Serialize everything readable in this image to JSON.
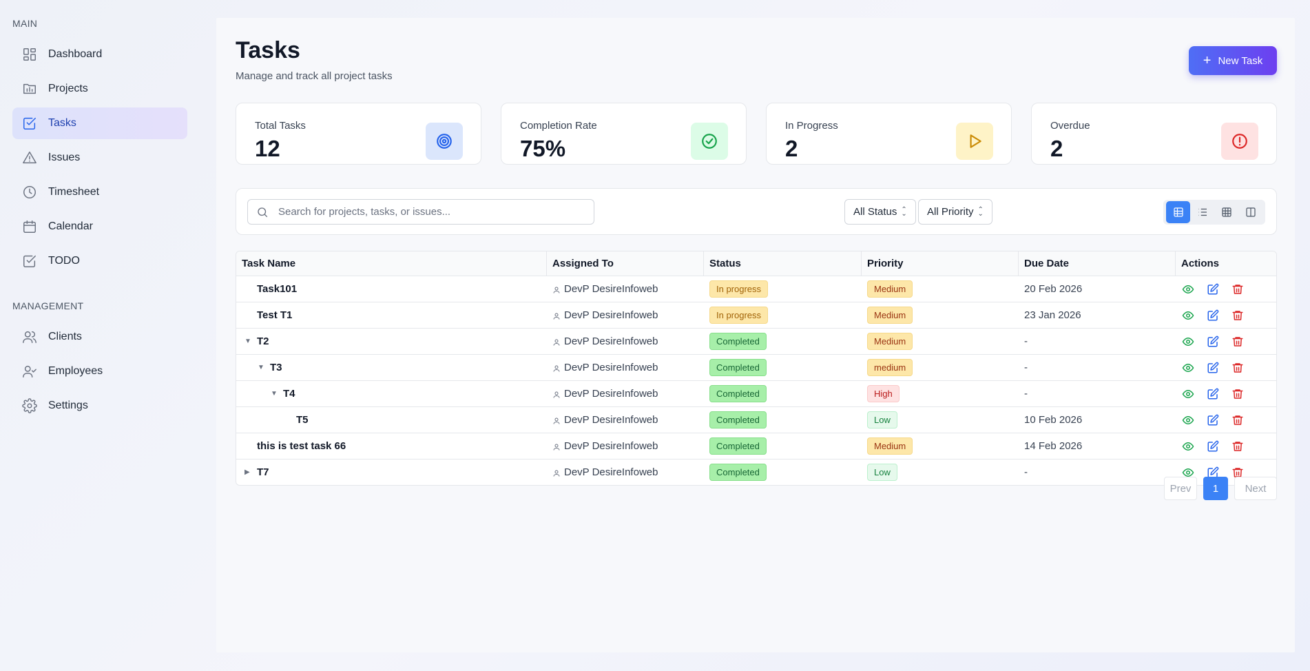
{
  "sidebar": {
    "main_label": "MAIN",
    "management_label": "MANAGEMENT",
    "main_items": [
      {
        "label": "Dashboard",
        "icon": "dashboard-icon"
      },
      {
        "label": "Projects",
        "icon": "projects-icon"
      },
      {
        "label": "Tasks",
        "icon": "tasks-icon",
        "active": true
      },
      {
        "label": "Issues",
        "icon": "warning-icon"
      },
      {
        "label": "Timesheet",
        "icon": "clock-icon"
      },
      {
        "label": "Calendar",
        "icon": "calendar-icon"
      },
      {
        "label": "TODO",
        "icon": "checkbox-icon"
      }
    ],
    "management_items": [
      {
        "label": "Clients",
        "icon": "users-icon"
      },
      {
        "label": "Employees",
        "icon": "user-check-icon"
      },
      {
        "label": "Settings",
        "icon": "gear-icon"
      }
    ]
  },
  "header": {
    "title": "Tasks",
    "subtitle": "Manage and track all project tasks",
    "new_button": "New Task"
  },
  "stats": [
    {
      "label": "Total Tasks",
      "value": "12",
      "icon": "target-icon",
      "color": "#2563eb",
      "bg": "#dbe6fc"
    },
    {
      "label": "Completion Rate",
      "value": "75%",
      "icon": "check-circle-icon",
      "color": "#16a34a",
      "bg": "#dcfce7"
    },
    {
      "label": "In Progress",
      "value": "2",
      "icon": "play-icon",
      "color": "#ca8a04",
      "bg": "#fef3c7"
    },
    {
      "label": "Overdue",
      "value": "2",
      "icon": "alert-circle-icon",
      "color": "#dc2626",
      "bg": "#fee2e2"
    }
  ],
  "filters": {
    "search_placeholder": "Search for projects, tasks, or issues...",
    "status": "All Status",
    "priority": "All Priority"
  },
  "table": {
    "headers": [
      "Task Name",
      "Assigned To",
      "Status",
      "Priority",
      "Due Date",
      "Actions"
    ],
    "rows": [
      {
        "name": "Task101",
        "assigned": "DevP DesireInfoweb",
        "status": "In progress",
        "priority": "Medium",
        "due": "20 Feb 2026"
      },
      {
        "name": "Test T1",
        "assigned": "DevP DesireInfoweb",
        "status": "In progress",
        "priority": "Medium",
        "due": "23 Jan 2026"
      },
      {
        "name": "T2",
        "assigned": "DevP DesireInfoweb",
        "status": "Completed",
        "priority": "Medium",
        "due": "-"
      },
      {
        "name": "T3",
        "assigned": "DevP DesireInfoweb",
        "status": "Completed",
        "priority": "medium",
        "due": "-"
      },
      {
        "name": "T4",
        "assigned": "DevP DesireInfoweb",
        "status": "Completed",
        "priority": "High",
        "due": "-"
      },
      {
        "name": "T5",
        "assigned": "DevP DesireInfoweb",
        "status": "Completed",
        "priority": "Low",
        "due": "10 Feb 2026"
      },
      {
        "name": "this is test task 66",
        "assigned": "DevP DesireInfoweb",
        "status": "Completed",
        "priority": "Medium",
        "due": "14 Feb 2026"
      },
      {
        "name": "T7",
        "assigned": "DevP DesireInfoweb",
        "status": "Completed",
        "priority": "Low",
        "due": "-"
      }
    ]
  },
  "pagination": {
    "prev": "Prev",
    "page": "1",
    "next": "Next"
  }
}
